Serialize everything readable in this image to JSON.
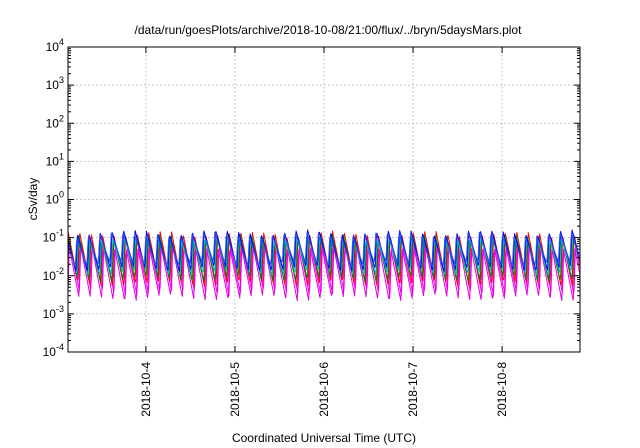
{
  "chart_data": {
    "type": "line",
    "title": "/data/run/goesPlots/archive/2018-10-08/21:00/flux/../bryn/5daysMars.plot",
    "xlabel": "Coordinated Universal Time (UTC)",
    "ylabel": "cSv/day",
    "yscale": "log",
    "ylim": [
      0.0001,
      10000
    ],
    "xlim": [
      "2018-10-03 03:00",
      "2018-10-08 21:00"
    ],
    "grid": true,
    "legend": "none",
    "y_ticks": [
      {
        "base": "10",
        "exp": "-4"
      },
      {
        "base": "10",
        "exp": "-3"
      },
      {
        "base": "10",
        "exp": "-2"
      },
      {
        "base": "10",
        "exp": "-1"
      },
      {
        "base": "10",
        "exp": "0"
      },
      {
        "base": "10",
        "exp": "1"
      },
      {
        "base": "10",
        "exp": "2"
      },
      {
        "base": "10",
        "exp": "3"
      },
      {
        "base": "10",
        "exp": "4"
      }
    ],
    "x_ticks": [
      "2018-10-4",
      "2018-10-5",
      "2018-10-6",
      "2018-10-7",
      "2018-10-8"
    ],
    "cycle_hours": 3.1,
    "series": [
      {
        "color": "#ff00ff",
        "peak": 0.07,
        "trough": 0.0035
      },
      {
        "color": "#e000e0",
        "peak": 0.06,
        "trough": 0.0025
      },
      {
        "color": "#ff0000",
        "peak": 0.13,
        "trough": 0.006
      },
      {
        "color": "#008000",
        "peak": 0.11,
        "trough": 0.008
      },
      {
        "color": "#00c0c0",
        "peak": 0.1,
        "trough": 0.012
      },
      {
        "color": "#0000ff",
        "peak": 0.14,
        "trough": 0.015
      },
      {
        "color": "#3050e0",
        "peak": 0.12,
        "trough": 0.02
      }
    ]
  }
}
